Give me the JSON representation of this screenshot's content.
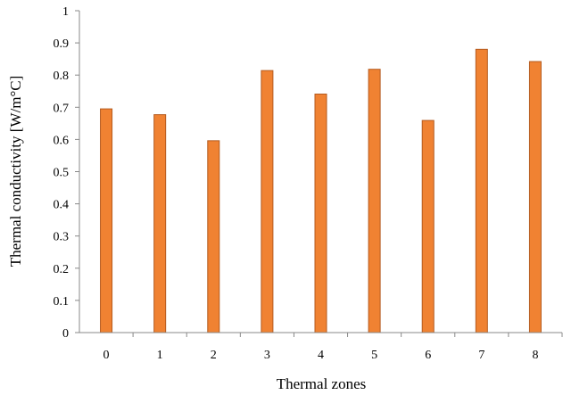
{
  "chart_data": {
    "type": "bar",
    "title": "",
    "xlabel": "Thermal zones",
    "ylabel": "Thermal conductivity [W/m°C]",
    "categories": [
      "0",
      "1",
      "2",
      "3",
      "4",
      "5",
      "6",
      "7",
      "8"
    ],
    "values": [
      0.695,
      0.677,
      0.596,
      0.814,
      0.741,
      0.818,
      0.659,
      0.88,
      0.842
    ],
    "ylim": [
      0,
      1
    ],
    "yticks": [
      "0",
      "0.1",
      "0.2",
      "0.3",
      "0.4",
      "0.5",
      "0.6",
      "0.7",
      "0.8",
      "0.9",
      "1"
    ],
    "grid": false,
    "legend": "none",
    "colors": {
      "bar_fill": "#f08232",
      "bar_stroke": "#b45a1e",
      "axis": "#888888"
    }
  }
}
